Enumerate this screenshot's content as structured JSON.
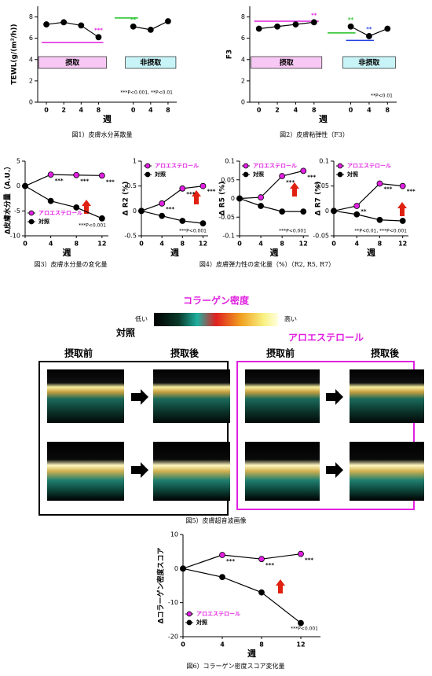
{
  "chart_data": [
    {
      "type": "line",
      "ylabel": "TEWL(g/(m²/h))",
      "xlabel": "週",
      "caption": "図1）皮膚水分蒸散量",
      "categories": [
        "0",
        "2",
        "4",
        "8",
        null,
        "0",
        "4",
        "8"
      ],
      "ylim": [
        0,
        9
      ],
      "yticks": [
        0,
        2,
        4,
        6,
        8
      ],
      "series": [
        {
          "color": "#000000",
          "values": [
            7.3,
            7.5,
            7.2,
            6.1,
            null,
            7.1,
            6.8,
            7.6
          ],
          "significance": [
            null,
            null,
            null,
            {
              "text": "***",
              "color": "#e020e0"
            },
            null,
            {
              "text": "**",
              "color": "#20c020"
            },
            null,
            null
          ]
        }
      ],
      "phases": [
        {
          "label": "摂取",
          "color": "#f8c8f4"
        },
        {
          "label": "非摂取",
          "color": "#c8f4f8"
        }
      ],
      "footnote": "***P<0.001, **P<0.01"
    },
    {
      "type": "line",
      "ylabel": "F3",
      "xlabel": "週",
      "caption": "図2）皮膚粘弾性（F3）",
      "categories": [
        "0",
        "2",
        "4",
        "8",
        null,
        "0",
        "4",
        "8"
      ],
      "ylim": [
        0,
        9
      ],
      "yticks": [
        0,
        2,
        4,
        6,
        8
      ],
      "series": [
        {
          "color": "#000000",
          "values": [
            6.9,
            7.1,
            7.3,
            7.5,
            null,
            7.1,
            6.2,
            6.9
          ],
          "significance": [
            null,
            null,
            null,
            {
              "text": "**",
              "color": "#e020e0"
            },
            null,
            {
              "text": "**",
              "color": "#20c020"
            },
            {
              "text": "**",
              "color": "#2040e0"
            },
            null
          ]
        }
      ],
      "phases": [
        {
          "label": "摂取",
          "color": "#f8c8f4"
        },
        {
          "label": "非摂取",
          "color": "#c8f4f8"
        }
      ],
      "footnote": "**P<0.01"
    },
    {
      "type": "line",
      "ylabel": "Δ皮膚水分量（A.U.）",
      "xlabel": "週",
      "caption": "図3）皮膚水分量の変化量",
      "x": [
        0,
        4,
        8,
        12
      ],
      "xlim": [
        0,
        13
      ],
      "xticks": [
        0,
        4,
        8,
        12
      ],
      "ylim": [
        -10,
        5
      ],
      "yticks": [
        -10,
        -5,
        0,
        5
      ],
      "legend": "lower left",
      "series": [
        {
          "name": "アロエステロール",
          "color": "#e020e0",
          "values": [
            0,
            2.3,
            2.2,
            2.1
          ],
          "significance": [
            null,
            {
              "text": "***",
              "color": "#000000"
            },
            {
              "text": "***",
              "color": "#000000"
            },
            {
              "text": "***",
              "color": "#000000"
            }
          ]
        },
        {
          "name": "対照",
          "color": "#000000",
          "values": [
            0,
            -3,
            -4.3,
            -6.5
          ]
        }
      ],
      "footnote": "***P<0.001"
    },
    {
      "type": "line",
      "ylabel": "Δ R2 (%)",
      "xlabel": "週",
      "caption": "図4）皮膚弾力性の変化量（%）（R2, R5, R7）",
      "x": [
        0,
        4,
        8,
        12
      ],
      "xlim": [
        0,
        13
      ],
      "xticks": [
        0,
        4,
        8,
        12
      ],
      "ylim": [
        -0.5,
        1
      ],
      "yticks": [
        -0.5,
        0,
        0.5,
        1
      ],
      "legend": "upper left",
      "series": [
        {
          "name": "アロエステロール",
          "color": "#e020e0",
          "values": [
            0,
            0.15,
            0.45,
            0.5
          ],
          "significance": [
            null,
            {
              "text": "***",
              "color": "#000000"
            },
            {
              "text": "***",
              "color": "#000000"
            },
            {
              "text": "***",
              "color": "#000000"
            }
          ]
        },
        {
          "name": "対照",
          "color": "#000000",
          "values": [
            0,
            -0.1,
            -0.2,
            -0.25
          ]
        }
      ],
      "footnote": "***P<0.001"
    },
    {
      "type": "line",
      "ylabel": "Δ R5 (%)",
      "xlabel": "週",
      "x": [
        0,
        4,
        8,
        12
      ],
      "xlim": [
        0,
        13
      ],
      "xticks": [
        0,
        4,
        8,
        12
      ],
      "ylim": [
        -0.1,
        0.1
      ],
      "yticks": [
        -0.1,
        -0.05,
        0,
        0.05,
        0.1
      ],
      "legend": "upper left",
      "series": [
        {
          "name": "アロエステロール",
          "color": "#e020e0",
          "values": [
            0,
            0.003,
            0.06,
            0.074
          ],
          "significance": [
            null,
            null,
            {
              "text": "***",
              "color": "#000000"
            },
            {
              "text": "***",
              "color": "#000000"
            }
          ]
        },
        {
          "name": "対照",
          "color": "#000000",
          "values": [
            0,
            -0.02,
            -0.035,
            -0.035
          ]
        }
      ],
      "footnote": "***P<0.001"
    },
    {
      "type": "line",
      "ylabel": "Δ R7 (%)",
      "xlabel": "週",
      "x": [
        0,
        4,
        8,
        12
      ],
      "xlim": [
        0,
        13
      ],
      "xticks": [
        0,
        4,
        8,
        12
      ],
      "ylim": [
        -0.05,
        0.1
      ],
      "yticks": [
        -0.05,
        0,
        0.05,
        0.1
      ],
      "legend": "upper left",
      "series": [
        {
          "name": "アロエステロール",
          "color": "#e020e0",
          "values": [
            0,
            0.01,
            0.055,
            0.05
          ],
          "significance": [
            null,
            {
              "text": "**",
              "color": "#000000"
            },
            {
              "text": "***",
              "color": "#000000"
            },
            {
              "text": "***",
              "color": "#000000"
            }
          ]
        },
        {
          "name": "対照",
          "color": "#000000",
          "values": [
            0,
            -0.007,
            -0.018,
            -0.02
          ]
        }
      ],
      "footnote": "**P<0.01, ***P<0.001"
    },
    {
      "type": "line",
      "ylabel": "Δコラーゲン密度スコア",
      "xlabel": "週",
      "caption": "図6）コラーゲン密度スコア変化量",
      "x": [
        0,
        4,
        8,
        12
      ],
      "xlim": [
        0,
        14
      ],
      "xticks": [
        0,
        4,
        8,
        12
      ],
      "ylim": [
        -20,
        10
      ],
      "yticks": [
        -20,
        -10,
        0,
        10
      ],
      "legend": "lower left",
      "series": [
        {
          "name": "アロエステロール",
          "color": "#e020e0",
          "values": [
            0,
            4,
            2.8,
            4.3
          ],
          "significance": [
            null,
            {
              "text": "***",
              "color": "#000000"
            },
            {
              "text": "***",
              "color": "#000000"
            },
            {
              "text": "***",
              "color": "#000000"
            }
          ]
        },
        {
          "name": "対照",
          "color": "#000000",
          "values": [
            0,
            -2.5,
            -7,
            -16
          ]
        }
      ],
      "footnote": "***P<0.001"
    }
  ],
  "figure5": {
    "title": "コラーゲン密度",
    "low": "低い",
    "high": "高い",
    "caption": "図5）皮膚超音波画像",
    "groups": [
      {
        "name": "対照",
        "before": "摂取前",
        "after": "摂取後"
      },
      {
        "name": "アロエステロール",
        "before": "摂取前",
        "after": "摂取後"
      }
    ]
  }
}
